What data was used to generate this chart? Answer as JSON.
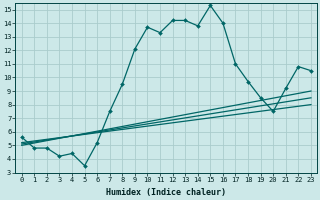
{
  "xlabel": "Humidex (Indice chaleur)",
  "bg_color": "#cce8e8",
  "grid_color": "#aacccc",
  "line_color": "#006666",
  "xlim": [
    -0.5,
    23.5
  ],
  "ylim": [
    3,
    15.5
  ],
  "xticks": [
    0,
    1,
    2,
    3,
    4,
    5,
    6,
    7,
    8,
    9,
    10,
    11,
    12,
    13,
    14,
    15,
    16,
    17,
    18,
    19,
    20,
    21,
    22,
    23
  ],
  "yticks": [
    3,
    4,
    5,
    6,
    7,
    8,
    9,
    10,
    11,
    12,
    13,
    14,
    15
  ],
  "main_x": [
    0,
    1,
    2,
    3,
    4,
    5,
    6,
    7,
    8,
    9,
    10,
    11,
    12,
    13,
    14,
    15,
    16,
    17,
    18,
    19,
    20,
    21,
    22,
    23
  ],
  "main_y": [
    5.6,
    4.8,
    4.8,
    4.2,
    4.4,
    3.5,
    5.2,
    7.5,
    9.5,
    12.1,
    13.7,
    13.3,
    14.2,
    14.2,
    13.8,
    15.3,
    14.0,
    11.0,
    9.7,
    8.5,
    7.5,
    9.2,
    10.8,
    10.5
  ],
  "trend_lines": [
    {
      "x": [
        0,
        23
      ],
      "y": [
        5.0,
        9.0
      ]
    },
    {
      "x": [
        0,
        23
      ],
      "y": [
        5.1,
        8.5
      ]
    },
    {
      "x": [
        0,
        23
      ],
      "y": [
        5.2,
        8.0
      ]
    }
  ]
}
